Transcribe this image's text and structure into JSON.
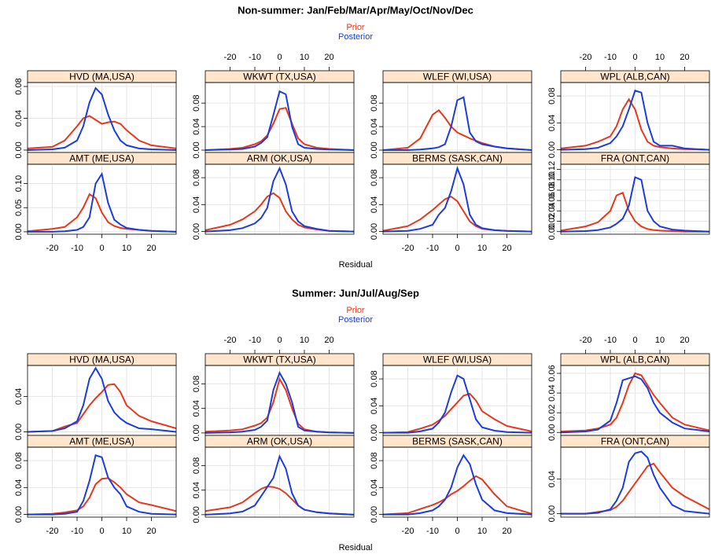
{
  "chart_data": [
    {
      "type": "line",
      "title": "Non-summer: Jan/Feb/Mar/Apr/May/Oct/Nov/Dec",
      "xlabel": "Residual",
      "legend": [
        {
          "name": "Prior",
          "color": "#e8371c"
        },
        {
          "name": "Posterior",
          "color": "#1c3cdc"
        }
      ],
      "grid": true,
      "xlim": [
        -30,
        30
      ],
      "xticks": [
        -20,
        -10,
        0,
        10,
        20
      ],
      "x": [
        -30,
        -20,
        -15,
        -10,
        -7.5,
        -5,
        -2.5,
        0,
        2.5,
        5,
        7.5,
        10,
        15,
        20,
        30
      ],
      "panels": [
        {
          "label": "HVD (MA,USA)",
          "ylim": [
            -0.003,
            0.085
          ],
          "yticks": [
            {
              "value": 0,
              "label": "0.00"
            },
            0.04,
            0.08
          ],
          "series": [
            {
              "values": [
                0.002,
                0.004,
                0.012,
                0.03,
                0.04,
                0.043,
                0.038,
                0.033,
                0.035,
                0.036,
                0.033,
                0.025,
                0.012,
                0.006,
                0.002
              ]
            },
            {
              "values": [
                0,
                0.001,
                0.003,
                0.012,
                0.03,
                0.06,
                0.078,
                0.07,
                0.045,
                0.025,
                0.012,
                0.006,
                0.002,
                0.001,
                0
              ]
            }
          ]
        },
        {
          "label": "WKWT (TX,USA)",
          "ylim": [
            -0.004,
            0.115
          ],
          "yticks": [
            {
              "value": 0,
              "label": "0.00"
            },
            0.04,
            0.08
          ],
          "series": [
            {
              "values": [
                0,
                0.002,
                0.004,
                0.01,
                0.015,
                0.025,
                0.045,
                0.07,
                0.072,
                0.045,
                0.02,
                0.01,
                0.004,
                0.002,
                0
              ]
            },
            {
              "values": [
                0,
                0.001,
                0.002,
                0.006,
                0.012,
                0.022,
                0.06,
                0.1,
                0.095,
                0.04,
                0.01,
                0.004,
                0.002,
                0.001,
                0
              ]
            }
          ]
        },
        {
          "label": "WLEF (WI,USA)",
          "ylim": [
            -0.004,
            0.115
          ],
          "yticks": [
            {
              "value": 0,
              "label": "0.00"
            },
            0.04,
            0.08
          ],
          "series": [
            {
              "values": [
                0,
                0.004,
                0.02,
                0.06,
                0.068,
                0.055,
                0.04,
                0.03,
                0.025,
                0.02,
                0.016,
                0.012,
                0.006,
                0.003,
                0
              ]
            },
            {
              "values": [
                0,
                0,
                0.001,
                0.003,
                0.005,
                0.01,
                0.04,
                0.085,
                0.09,
                0.03,
                0.015,
                0.01,
                0.006,
                0.003,
                0
              ]
            }
          ]
        },
        {
          "label": "WPL (ALB,CAN)",
          "ylim": [
            -0.004,
            0.1
          ],
          "yticks": [
            {
              "value": 0,
              "label": "0.00"
            },
            0.04,
            0.08
          ],
          "series": [
            {
              "values": [
                0.002,
                0.006,
                0.012,
                0.02,
                0.035,
                0.06,
                0.075,
                0.06,
                0.03,
                0.012,
                0.006,
                0.004,
                0.002,
                0.001,
                0
              ]
            },
            {
              "values": [
                0,
                0.001,
                0.003,
                0.01,
                0.02,
                0.035,
                0.06,
                0.088,
                0.085,
                0.04,
                0.012,
                0.006,
                0.006,
                0.002,
                0
              ]
            }
          ]
        },
        {
          "label": "AMT (ME,USA)",
          "ylim": [
            -0.005,
            0.14
          ],
          "yticks": [
            {
              "value": 0,
              "label": "0.00"
            },
            0.05,
            {
              "value": 0.1,
              "label": "0.10"
            }
          ],
          "series": [
            {
              "values": [
                0.001,
                0.006,
                0.01,
                0.03,
                0.05,
                0.078,
                0.07,
                0.04,
                0.02,
                0.012,
                0.008,
                0.006,
                0.004,
                0.002,
                0
              ]
            },
            {
              "values": [
                0,
                0,
                0.001,
                0.004,
                0.01,
                0.03,
                0.1,
                0.12,
                0.06,
                0.025,
                0.015,
                0.008,
                0.004,
                0.002,
                0
              ]
            }
          ]
        },
        {
          "label": "ARM (OK,USA)",
          "ylim": [
            -0.004,
            0.1
          ],
          "yticks": [
            {
              "value": 0,
              "label": "0.00"
            },
            0.04,
            0.08
          ],
          "series": [
            {
              "values": [
                0.002,
                0.01,
                0.018,
                0.03,
                0.04,
                0.052,
                0.057,
                0.05,
                0.03,
                0.018,
                0.01,
                0.006,
                0.003,
                0.001,
                0
              ]
            },
            {
              "values": [
                0,
                0.002,
                0.005,
                0.012,
                0.02,
                0.035,
                0.075,
                0.094,
                0.07,
                0.03,
                0.015,
                0.008,
                0.004,
                0.001,
                0
              ]
            }
          ]
        },
        {
          "label": "BERMS (SASK,CAN)",
          "ylim": [
            -0.004,
            0.1
          ],
          "yticks": [
            {
              "value": 0,
              "label": "0.00"
            },
            0.04,
            0.08
          ],
          "series": [
            {
              "values": [
                0.001,
                0.008,
                0.018,
                0.032,
                0.04,
                0.048,
                0.052,
                0.045,
                0.03,
                0.015,
                0.008,
                0.004,
                0.002,
                0.001,
                0
              ]
            },
            {
              "values": [
                0,
                0.001,
                0.004,
                0.01,
                0.025,
                0.035,
                0.06,
                0.094,
                0.07,
                0.025,
                0.01,
                0.005,
                0.002,
                0.001,
                0
              ]
            }
          ]
        },
        {
          "label": "FRA (ONT,CAN)",
          "ylim": [
            -0.005,
            0.13
          ],
          "yticks": [
            {
              "value": 0,
              "label": "0.00"
            },
            0.02,
            0.04,
            0.06,
            0.08,
            {
              "value": 0.1,
              "label": "0.10"
            },
            0.12
          ],
          "series": [
            {
              "values": [
                0.002,
                0.01,
                0.018,
                0.04,
                0.07,
                0.075,
                0.04,
                0.02,
                0.01,
                0.005,
                0.003,
                0.002,
                0.001,
                0,
                0
              ]
            },
            {
              "values": [
                0,
                0.001,
                0.003,
                0.008,
                0.015,
                0.025,
                0.05,
                0.105,
                0.1,
                0.04,
                0.02,
                0.01,
                0.004,
                0.002,
                0
              ]
            }
          ]
        }
      ]
    },
    {
      "type": "line",
      "title": "Summer: Jun/Jul/Aug/Sep",
      "xlabel": "Residual",
      "legend": [
        {
          "name": "Prior",
          "color": "#e8371c"
        },
        {
          "name": "Posterior",
          "color": "#1c3cdc"
        }
      ],
      "grid": true,
      "xlim": [
        -30,
        30
      ],
      "xticks": [
        -20,
        -10,
        0,
        10,
        20
      ],
      "x": [
        -30,
        -20,
        -15,
        -10,
        -7.5,
        -5,
        -2.5,
        0,
        2.5,
        5,
        7.5,
        10,
        15,
        20,
        30
      ],
      "panels": [
        {
          "label": "HVD (MA,USA)",
          "ylim": [
            -0.004,
            0.075
          ],
          "yticks": [
            {
              "value": 0,
              "label": "0.00"
            },
            0.04
          ],
          "series": [
            {
              "values": [
                0,
                0.001,
                0.006,
                0.01,
                0.02,
                0.03,
                0.038,
                0.045,
                0.053,
                0.054,
                0.045,
                0.03,
                0.018,
                0.012,
                0.004
              ]
            },
            {
              "values": [
                0,
                0.001,
                0.004,
                0.012,
                0.03,
                0.06,
                0.072,
                0.06,
                0.035,
                0.022,
                0.015,
                0.01,
                0.004,
                0.003,
                0
              ]
            }
          ]
        },
        {
          "label": "WKWT (TX,USA)",
          "ylim": [
            -0.004,
            0.11
          ],
          "yticks": [
            {
              "value": 0,
              "label": "0.00"
            },
            0.04,
            0.08
          ],
          "series": [
            {
              "values": [
                0.002,
                0.004,
                0.006,
                0.012,
                0.016,
                0.025,
                0.05,
                0.088,
                0.07,
                0.04,
                0.015,
                0.006,
                0.002,
                0.001,
                0
              ]
            },
            {
              "values": [
                0,
                0.001,
                0.002,
                0.005,
                0.01,
                0.02,
                0.07,
                0.098,
                0.08,
                0.05,
                0.01,
                0.004,
                0.002,
                0.001,
                0
              ]
            }
          ]
        },
        {
          "label": "WLEF (WI,USA)",
          "ylim": [
            -0.004,
            0.1
          ],
          "yticks": [
            {
              "value": 0,
              "label": "0.00"
            },
            0.04,
            0.08
          ],
          "series": [
            {
              "values": [
                0,
                0.001,
                0.006,
                0.012,
                0.018,
                0.025,
                0.035,
                0.045,
                0.055,
                0.058,
                0.048,
                0.032,
                0.02,
                0.01,
                0.002
              ]
            },
            {
              "values": [
                0,
                0,
                0.002,
                0.006,
                0.015,
                0.03,
                0.06,
                0.085,
                0.08,
                0.05,
                0.02,
                0.008,
                0.003,
                0.001,
                0
              ]
            }
          ]
        },
        {
          "label": "WPL (ALB,CAN)",
          "ylim": [
            -0.003,
            0.068
          ],
          "yticks": [
            {
              "value": 0,
              "label": "0.00"
            },
            0.02,
            0.04,
            0.06
          ],
          "series": [
            {
              "values": [
                0.001,
                0.002,
                0.004,
                0.008,
                0.015,
                0.03,
                0.048,
                0.06,
                0.058,
                0.048,
                0.038,
                0.03,
                0.015,
                0.008,
                0.002
              ]
            },
            {
              "values": [
                0,
                0.001,
                0.003,
                0.012,
                0.03,
                0.053,
                0.055,
                0.057,
                0.054,
                0.045,
                0.03,
                0.02,
                0.01,
                0.004,
                0.001
              ]
            }
          ]
        },
        {
          "label": "AMT (ME,USA)",
          "ylim": [
            -0.004,
            0.1
          ],
          "yticks": [
            {
              "value": 0,
              "label": "0.00"
            },
            0.04,
            0.08
          ],
          "series": [
            {
              "values": [
                0,
                0.001,
                0.003,
                0.006,
                0.012,
                0.025,
                0.045,
                0.053,
                0.054,
                0.048,
                0.04,
                0.03,
                0.018,
                0.014,
                0.005
              ]
            },
            {
              "values": [
                0,
                0,
                0.001,
                0.004,
                0.02,
                0.05,
                0.088,
                0.085,
                0.055,
                0.04,
                0.03,
                0.012,
                0.004,
                0.001,
                0
              ]
            }
          ]
        },
        {
          "label": "ARM (OK,USA)",
          "ylim": [
            -0.004,
            0.11
          ],
          "yticks": [
            {
              "value": 0,
              "label": "0.00"
            },
            0.04,
            0.08
          ],
          "series": [
            {
              "values": [
                0.006,
                0.012,
                0.02,
                0.035,
                0.042,
                0.046,
                0.045,
                0.042,
                0.035,
                0.025,
                0.015,
                0.008,
                0.004,
                0.002,
                0
              ]
            },
            {
              "values": [
                0,
                0.002,
                0.005,
                0.015,
                0.03,
                0.045,
                0.06,
                0.095,
                0.075,
                0.035,
                0.015,
                0.008,
                0.004,
                0.002,
                0
              ]
            }
          ]
        },
        {
          "label": "BERMS (SASK,CAN)",
          "ylim": [
            -0.004,
            0.1
          ],
          "yticks": [
            {
              "value": 0,
              "label": "0.00"
            },
            0.04,
            0.08
          ],
          "series": [
            {
              "values": [
                0,
                0.002,
                0.008,
                0.014,
                0.018,
                0.023,
                0.03,
                0.035,
                0.042,
                0.05,
                0.057,
                0.052,
                0.03,
                0.012,
                0.001
              ]
            },
            {
              "values": [
                0,
                0,
                0.002,
                0.006,
                0.012,
                0.022,
                0.04,
                0.07,
                0.088,
                0.075,
                0.045,
                0.022,
                0.006,
                0.002,
                0
              ]
            }
          ]
        },
        {
          "label": "FRA (ONT,CAN)",
          "ylim": [
            -0.004,
            0.077
          ],
          "yticks": [
            {
              "value": 0,
              "label": "0.00"
            },
            0.04
          ],
          "series": [
            {
              "values": [
                0,
                0,
                0.002,
                0.004,
                0.008,
                0.015,
                0.025,
                0.035,
                0.045,
                0.055,
                0.058,
                0.048,
                0.03,
                0.02,
                0.005
              ]
            },
            {
              "values": [
                0,
                0,
                0.001,
                0.005,
                0.015,
                0.03,
                0.06,
                0.07,
                0.072,
                0.065,
                0.045,
                0.03,
                0.01,
                0.003,
                0
              ]
            }
          ]
        }
      ]
    }
  ]
}
